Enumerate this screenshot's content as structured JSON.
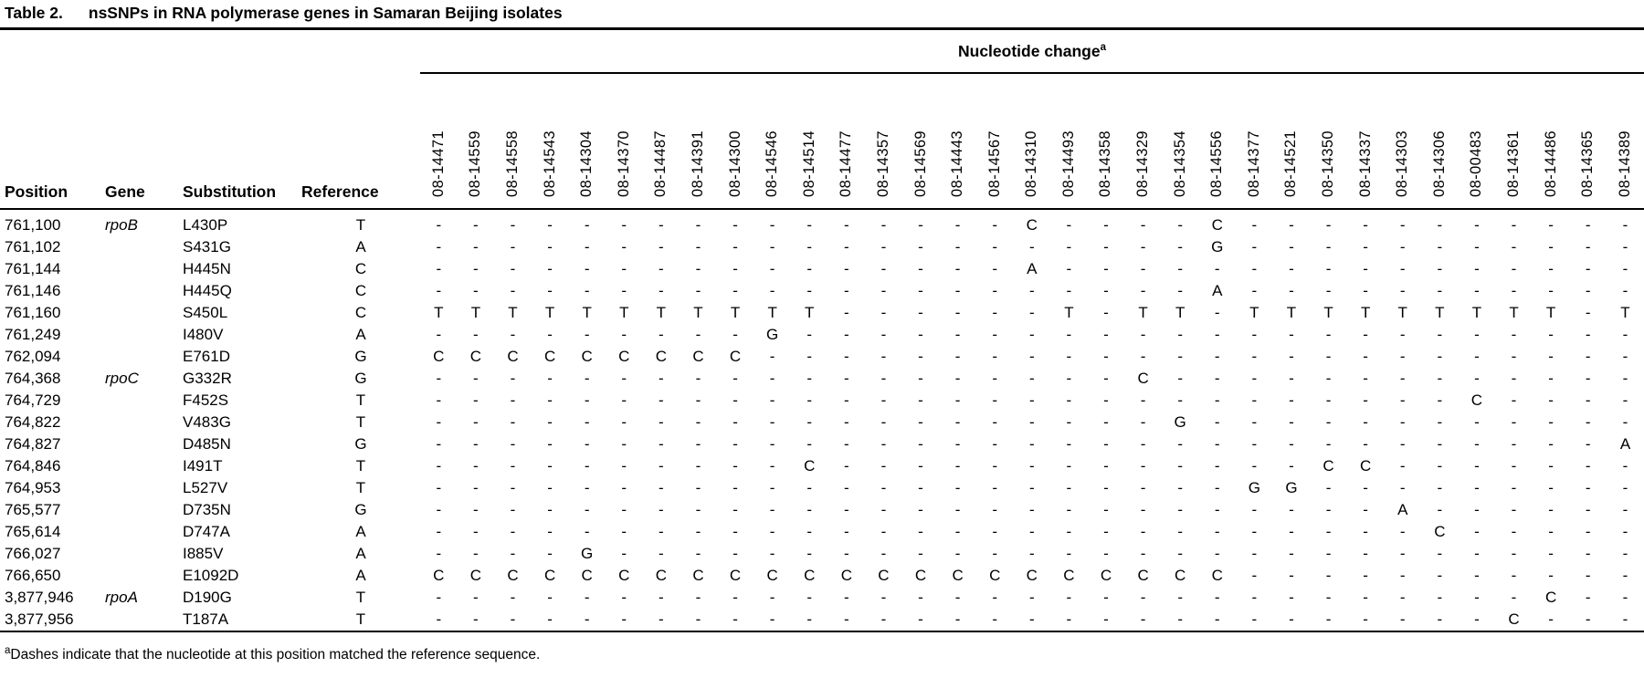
{
  "title": {
    "label": "Table 2.",
    "text": "nsSNPs in RNA polymerase genes in Samaran Beijing isolates"
  },
  "nucleotide_header": {
    "text": "Nucleotide change",
    "sup": "a"
  },
  "column_headers": {
    "position": "Position",
    "gene": "Gene",
    "substitution": "Substitution",
    "reference": "Reference"
  },
  "isolates": [
    "08-14471",
    "08-14559",
    "08-14558",
    "08-14543",
    "08-14304",
    "08-14370",
    "08-14487",
    "08-14391",
    "08-14300",
    "08-14546",
    "08-14514",
    "08-14477",
    "08-14357",
    "08-14569",
    "08-14443",
    "08-14567",
    "08-14310",
    "08-14493",
    "08-14358",
    "08-14329",
    "08-14354",
    "08-14556",
    "08-14377",
    "08-14521",
    "08-14350",
    "08-14337",
    "08-14303",
    "08-14306",
    "08-00483",
    "08-14361",
    "08-14486",
    "08-14365",
    "08-14389"
  ],
  "rows": [
    {
      "position": "761,100",
      "gene": "rpoB",
      "substitution": "L430P",
      "reference": "T",
      "changes": [
        "-",
        "-",
        "-",
        "-",
        "-",
        "-",
        "-",
        "-",
        "-",
        "-",
        "-",
        "-",
        "-",
        "-",
        "-",
        "-",
        "C",
        "-",
        "-",
        "-",
        "-",
        "C",
        "-",
        "-",
        "-",
        "-",
        "-",
        "-",
        "-",
        "-",
        "-",
        "-",
        "-"
      ]
    },
    {
      "position": "761,102",
      "gene": "",
      "substitution": "S431G",
      "reference": "A",
      "changes": [
        "-",
        "-",
        "-",
        "-",
        "-",
        "-",
        "-",
        "-",
        "-",
        "-",
        "-",
        "-",
        "-",
        "-",
        "-",
        "-",
        "-",
        "-",
        "-",
        "-",
        "-",
        "G",
        "-",
        "-",
        "-",
        "-",
        "-",
        "-",
        "-",
        "-",
        "-",
        "-",
        "-"
      ]
    },
    {
      "position": "761,144",
      "gene": "",
      "substitution": "H445N",
      "reference": "C",
      "changes": [
        "-",
        "-",
        "-",
        "-",
        "-",
        "-",
        "-",
        "-",
        "-",
        "-",
        "-",
        "-",
        "-",
        "-",
        "-",
        "-",
        "A",
        "-",
        "-",
        "-",
        "-",
        "-",
        "-",
        "-",
        "-",
        "-",
        "-",
        "-",
        "-",
        "-",
        "-",
        "-",
        "-"
      ]
    },
    {
      "position": "761,146",
      "gene": "",
      "substitution": "H445Q",
      "reference": "C",
      "changes": [
        "-",
        "-",
        "-",
        "-",
        "-",
        "-",
        "-",
        "-",
        "-",
        "-",
        "-",
        "-",
        "-",
        "-",
        "-",
        "-",
        "-",
        "-",
        "-",
        "-",
        "-",
        "A",
        "-",
        "-",
        "-",
        "-",
        "-",
        "-",
        "-",
        "-",
        "-",
        "-",
        "-"
      ]
    },
    {
      "position": "761,160",
      "gene": "",
      "substitution": "S450L",
      "reference": "C",
      "changes": [
        "T",
        "T",
        "T",
        "T",
        "T",
        "T",
        "T",
        "T",
        "T",
        "T",
        "T",
        "-",
        "-",
        "-",
        "-",
        "-",
        "-",
        "T",
        "-",
        "T",
        "T",
        "-",
        "T",
        "T",
        "T",
        "T",
        "T",
        "T",
        "T",
        "T",
        "T",
        "-",
        "T"
      ]
    },
    {
      "position": "761,249",
      "gene": "",
      "substitution": "I480V",
      "reference": "A",
      "changes": [
        "-",
        "-",
        "-",
        "-",
        "-",
        "-",
        "-",
        "-",
        "-",
        "G",
        "-",
        "-",
        "-",
        "-",
        "-",
        "-",
        "-",
        "-",
        "-",
        "-",
        "-",
        "-",
        "-",
        "-",
        "-",
        "-",
        "-",
        "-",
        "-",
        "-",
        "-",
        "-",
        "-"
      ]
    },
    {
      "position": "762,094",
      "gene": "",
      "substitution": "E761D",
      "reference": "G",
      "changes": [
        "C",
        "C",
        "C",
        "C",
        "C",
        "C",
        "C",
        "C",
        "C",
        "-",
        "-",
        "-",
        "-",
        "-",
        "-",
        "-",
        "-",
        "-",
        "-",
        "-",
        "-",
        "-",
        "-",
        "-",
        "-",
        "-",
        "-",
        "-",
        "-",
        "-",
        "-",
        "-",
        "-"
      ]
    },
    {
      "position": "764,368",
      "gene": "rpoC",
      "substitution": "G332R",
      "reference": "G",
      "changes": [
        "-",
        "-",
        "-",
        "-",
        "-",
        "-",
        "-",
        "-",
        "-",
        "-",
        "-",
        "-",
        "-",
        "-",
        "-",
        "-",
        "-",
        "-",
        "-",
        "C",
        "-",
        "-",
        "-",
        "-",
        "-",
        "-",
        "-",
        "-",
        "-",
        "-",
        "-",
        "-",
        "-"
      ]
    },
    {
      "position": "764,729",
      "gene": "",
      "substitution": "F452S",
      "reference": "T",
      "changes": [
        "-",
        "-",
        "-",
        "-",
        "-",
        "-",
        "-",
        "-",
        "-",
        "-",
        "-",
        "-",
        "-",
        "-",
        "-",
        "-",
        "-",
        "-",
        "-",
        "-",
        "-",
        "-",
        "-",
        "-",
        "-",
        "-",
        "-",
        "-",
        "C",
        "-",
        "-",
        "-",
        "-"
      ]
    },
    {
      "position": "764,822",
      "gene": "",
      "substitution": "V483G",
      "reference": "T",
      "changes": [
        "-",
        "-",
        "-",
        "-",
        "-",
        "-",
        "-",
        "-",
        "-",
        "-",
        "-",
        "-",
        "-",
        "-",
        "-",
        "-",
        "-",
        "-",
        "-",
        "-",
        "G",
        "-",
        "-",
        "-",
        "-",
        "-",
        "-",
        "-",
        "-",
        "-",
        "-",
        "-",
        "-"
      ]
    },
    {
      "position": "764,827",
      "gene": "",
      "substitution": "D485N",
      "reference": "G",
      "changes": [
        "-",
        "-",
        "-",
        "-",
        "-",
        "-",
        "-",
        "-",
        "-",
        "-",
        "-",
        "-",
        "-",
        "-",
        "-",
        "-",
        "-",
        "-",
        "-",
        "-",
        "-",
        "-",
        "-",
        "-",
        "-",
        "-",
        "-",
        "-",
        "-",
        "-",
        "-",
        "-",
        "A"
      ]
    },
    {
      "position": "764,846",
      "gene": "",
      "substitution": "I491T",
      "reference": "T",
      "changes": [
        "-",
        "-",
        "-",
        "-",
        "-",
        "-",
        "-",
        "-",
        "-",
        "-",
        "C",
        "-",
        "-",
        "-",
        "-",
        "-",
        "-",
        "-",
        "-",
        "-",
        "-",
        "-",
        "-",
        "-",
        "C",
        "C",
        "-",
        "-",
        "-",
        "-",
        "-",
        "-",
        "-"
      ]
    },
    {
      "position": "764,953",
      "gene": "",
      "substitution": "L527V",
      "reference": "T",
      "changes": [
        "-",
        "-",
        "-",
        "-",
        "-",
        "-",
        "-",
        "-",
        "-",
        "-",
        "-",
        "-",
        "-",
        "-",
        "-",
        "-",
        "-",
        "-",
        "-",
        "-",
        "-",
        "-",
        "G",
        "G",
        "-",
        "-",
        "-",
        "-",
        "-",
        "-",
        "-",
        "-",
        "-"
      ]
    },
    {
      "position": "765,577",
      "gene": "",
      "substitution": "D735N",
      "reference": "G",
      "changes": [
        "-",
        "-",
        "-",
        "-",
        "-",
        "-",
        "-",
        "-",
        "-",
        "-",
        "-",
        "-",
        "-",
        "-",
        "-",
        "-",
        "-",
        "-",
        "-",
        "-",
        "-",
        "-",
        "-",
        "-",
        "-",
        "-",
        "A",
        "-",
        "-",
        "-",
        "-",
        "-",
        "-"
      ]
    },
    {
      "position": "765,614",
      "gene": "",
      "substitution": "D747A",
      "reference": "A",
      "changes": [
        "-",
        "-",
        "-",
        "-",
        "-",
        "-",
        "-",
        "-",
        "-",
        "-",
        "-",
        "-",
        "-",
        "-",
        "-",
        "-",
        "-",
        "-",
        "-",
        "-",
        "-",
        "-",
        "-",
        "-",
        "-",
        "-",
        "-",
        "C",
        "-",
        "-",
        "-",
        "-",
        "-"
      ]
    },
    {
      "position": "766,027",
      "gene": "",
      "substitution": "I885V",
      "reference": "A",
      "changes": [
        "-",
        "-",
        "-",
        "-",
        "G",
        "-",
        "-",
        "-",
        "-",
        "-",
        "-",
        "-",
        "-",
        "-",
        "-",
        "-",
        "-",
        "-",
        "-",
        "-",
        "-",
        "-",
        "-",
        "-",
        "-",
        "-",
        "-",
        "-",
        "-",
        "-",
        "-",
        "-",
        "-"
      ]
    },
    {
      "position": "766,650",
      "gene": "",
      "substitution": "E1092D",
      "reference": "A",
      "changes": [
        "C",
        "C",
        "C",
        "C",
        "C",
        "C",
        "C",
        "C",
        "C",
        "C",
        "C",
        "C",
        "C",
        "C",
        "C",
        "C",
        "C",
        "C",
        "C",
        "C",
        "C",
        "C",
        "-",
        "-",
        "-",
        "-",
        "-",
        "-",
        "-",
        "-",
        "-",
        "-",
        "-"
      ]
    },
    {
      "position": "3,877,946",
      "gene": "rpoA",
      "substitution": "D190G",
      "reference": "T",
      "changes": [
        "-",
        "-",
        "-",
        "-",
        "-",
        "-",
        "-",
        "-",
        "-",
        "-",
        "-",
        "-",
        "-",
        "-",
        "-",
        "-",
        "-",
        "-",
        "-",
        "-",
        "-",
        "-",
        "-",
        "-",
        "-",
        "-",
        "-",
        "-",
        "-",
        "-",
        "C",
        "-",
        "-"
      ]
    },
    {
      "position": "3,877,956",
      "gene": "",
      "substitution": "T187A",
      "reference": "T",
      "changes": [
        "-",
        "-",
        "-",
        "-",
        "-",
        "-",
        "-",
        "-",
        "-",
        "-",
        "-",
        "-",
        "-",
        "-",
        "-",
        "-",
        "-",
        "-",
        "-",
        "-",
        "-",
        "-",
        "-",
        "-",
        "-",
        "-",
        "-",
        "-",
        "-",
        "C",
        "-",
        "-",
        "-"
      ]
    }
  ],
  "footnote": {
    "sup": "a",
    "text": "Dashes indicate that the nucleotide at this position matched the reference sequence."
  }
}
